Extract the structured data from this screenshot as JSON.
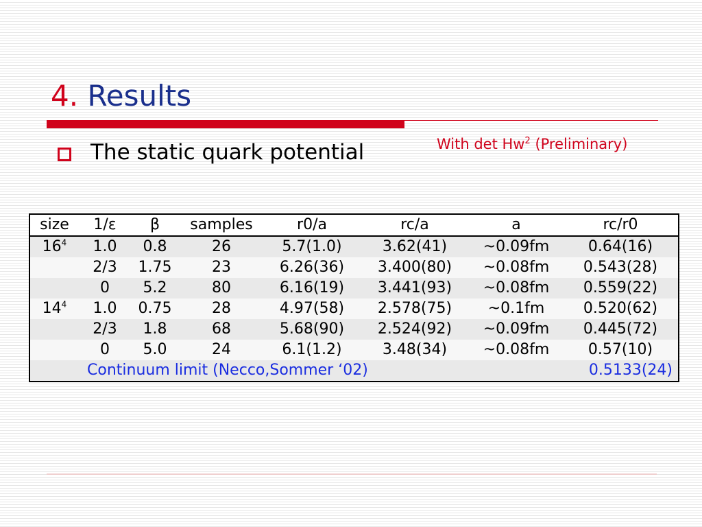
{
  "slide": {
    "title_number": "4.",
    "title_text": "Results",
    "note_prefix": "With det Hw",
    "note_sup": "2",
    "note_suffix": " (Preliminary)",
    "bullet": "The static quark potential"
  },
  "table": {
    "headers": [
      "size",
      "1/ε",
      "β",
      "samples",
      "r0/a",
      "rc/a",
      "a",
      "rc/r0"
    ],
    "rows": [
      {
        "size_base": "16",
        "size_exp": "4",
        "inv_eps": "1.0",
        "beta": "0.8",
        "samples": "26",
        "r0a": "5.7(1.0)",
        "rca": "3.62(41)",
        "a": "~0.09fm",
        "rcr0": "0.64(16)"
      },
      {
        "size_base": "",
        "size_exp": "",
        "inv_eps": "2/3",
        "beta": "1.75",
        "samples": "23",
        "r0a": "6.26(36)",
        "rca": "3.400(80)",
        "a": "~0.08fm",
        "rcr0": "0.543(28)"
      },
      {
        "size_base": "",
        "size_exp": "",
        "inv_eps": "0",
        "beta": "5.2",
        "samples": "80",
        "r0a": "6.16(19)",
        "rca": "3.441(93)",
        "a": "~0.08fm",
        "rcr0": "0.559(22)"
      },
      {
        "size_base": "14",
        "size_exp": "4",
        "inv_eps": "1.0",
        "beta": "0.75",
        "samples": "28",
        "r0a": "4.97(58)",
        "rca": "2.578(75)",
        "a": "~0.1fm",
        "rcr0": "0.520(62)"
      },
      {
        "size_base": "",
        "size_exp": "",
        "inv_eps": "2/3",
        "beta": "1.8",
        "samples": "68",
        "r0a": "5.68(90)",
        "rca": "2.524(92)",
        "a": "~0.09fm",
        "rcr0": "0.445(72)"
      },
      {
        "size_base": "",
        "size_exp": "",
        "inv_eps": "0",
        "beta": "5.0",
        "samples": "24",
        "r0a": "6.1(1.2)",
        "rca": "3.48(34)",
        "a": "~0.08fm",
        "rcr0": "0.57(10)"
      }
    ],
    "footer_label": "Continuum limit (Necco,Sommer ‘02)",
    "footer_value": "0.5133(24)"
  },
  "colors": {
    "title_blue": "#1a2f8c",
    "accent_red": "#d0021b",
    "footer_blue": "#1a2de0"
  },
  "icons": {
    "bullet": "hollow-square-bullet-icon"
  }
}
